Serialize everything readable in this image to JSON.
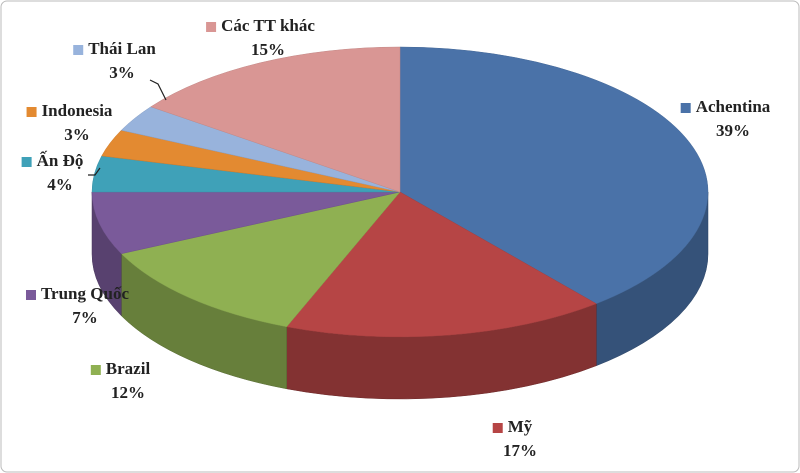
{
  "chart_data": {
    "type": "pie",
    "categories": [
      "Achentina",
      "Mỹ",
      "Brazil",
      "Trung Quốc",
      "Ấn Độ",
      "Indonesia",
      "Thái Lan",
      "Các TT khác"
    ],
    "values": [
      39,
      17,
      12,
      7,
      4,
      3,
      3,
      15
    ],
    "value_labels": [
      "39%",
      "17%",
      "12%",
      "7%",
      "4%",
      "3%",
      "3%",
      "15%"
    ],
    "colors": [
      "#4a72a8",
      "#b64545",
      "#8fb052",
      "#7a5a9a",
      "#3fa1b8",
      "#e38a31",
      "#98b3dc",
      "#d99694"
    ]
  }
}
